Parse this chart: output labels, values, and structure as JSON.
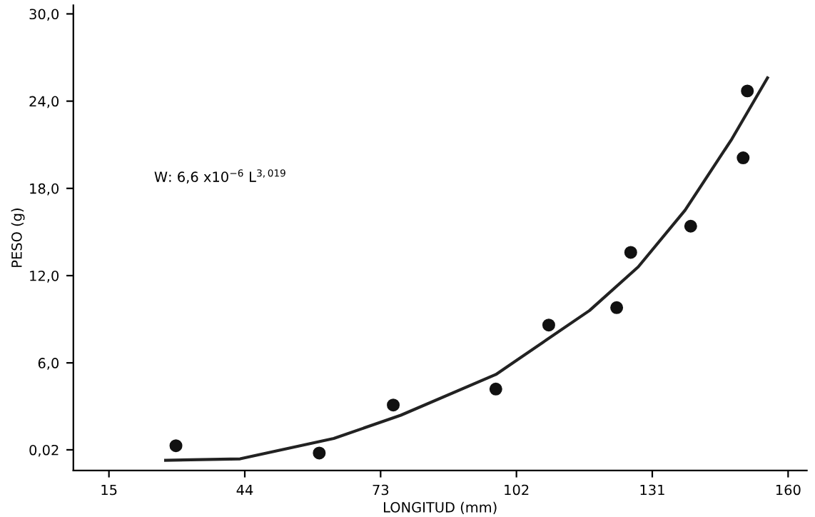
{
  "chart_data": {
    "type": "scatter",
    "xlabel": "LONGITUD (mm)",
    "ylabel": "PESO (g)",
    "annotations": [
      "W: 6,6 x10$^{−6}$ L$^{3,019}$"
    ],
    "series": [
      {
        "color": "#111111",
        "marker": "circle",
        "x": [
          29.3,
          59.9,
          75.7,
          97.6,
          108.9,
          123.4,
          126.4,
          139.2,
          150.4,
          151.3
        ],
        "values": [
          0.3,
          -0.2,
          3.1,
          4.2,
          8.6,
          9.8,
          13.6,
          15.4,
          20.1,
          24.7
        ]
      },
      {
        "type": "line",
        "color": "#222222",
        "line_style": "solid",
        "x": [
          27.1,
          43,
          63,
          77.3,
          97.6,
          117.6,
          128,
          138,
          148,
          155.6
        ],
        "values": [
          -0.7,
          -0.6,
          0.8,
          2.4,
          5.2,
          9.6,
          12.6,
          16.5,
          21.4,
          25.6
        ]
      }
    ],
    "xlim": [
      7.4,
      164
    ],
    "ylim": [
      -1.4,
      30.6
    ],
    "xticks": [
      15,
      44,
      73,
      102,
      131,
      160
    ],
    "yticks": [
      {
        "value": 0.02,
        "label": "0,02"
      },
      {
        "value": 6,
        "label": "6,0"
      },
      {
        "value": 12,
        "label": "12,0"
      },
      {
        "value": 18,
        "label": "18,0"
      },
      {
        "value": 24,
        "label": "24,0"
      },
      {
        "value": 30,
        "label": "30,0"
      }
    ],
    "grid": false,
    "legend": false
  }
}
